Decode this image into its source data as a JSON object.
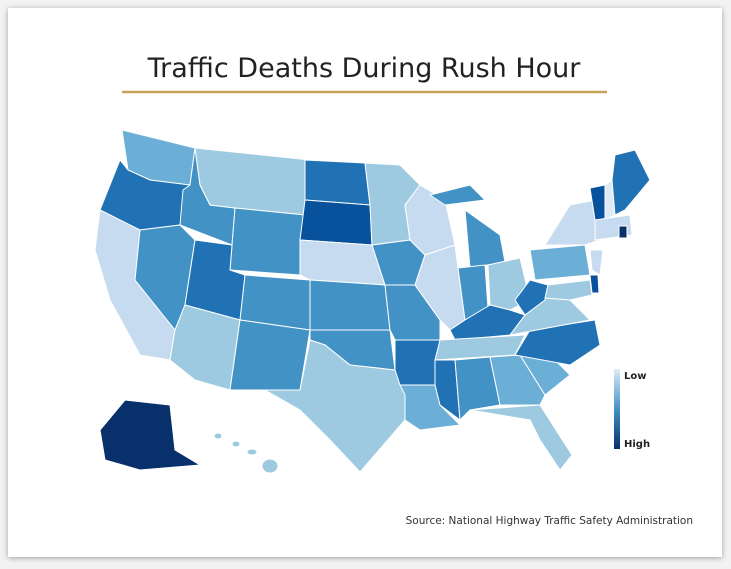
{
  "header": {
    "title": "Traffic Deaths During Rush Hour"
  },
  "legend": {
    "low": "Low",
    "high": "High"
  },
  "footer": {
    "source": "Source: National Highway Traffic Safety Administration"
  }
}
